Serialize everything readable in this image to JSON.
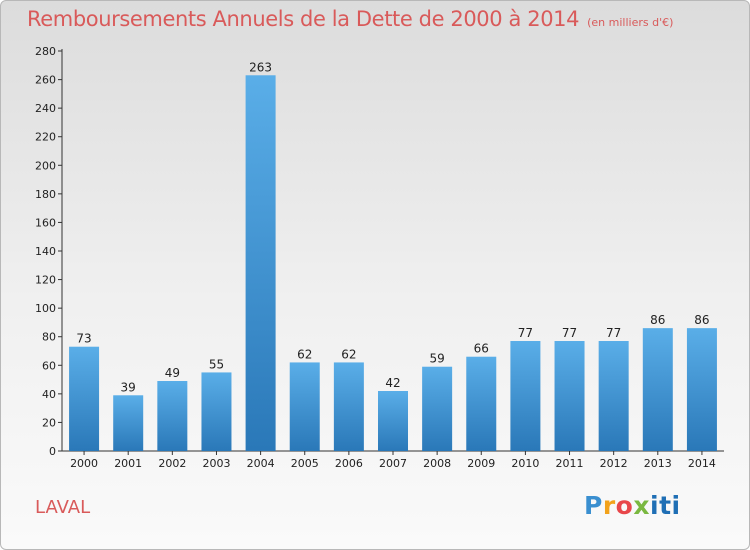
{
  "title": "Remboursements Annuels de la Dette de 2000 à 2014",
  "subtitle": "(en milliers d'€)",
  "commune": "LAVAL",
  "logo_text": "Proxiti",
  "colors": {
    "bar_top": "#5aaee8",
    "bar_bottom": "#2a78b8",
    "title": "#d95a5a"
  },
  "chart_data": {
    "type": "bar",
    "title": "Remboursements Annuels de la Dette de 2000 à 2014",
    "subtitle": "(en milliers d'€)",
    "xlabel": "",
    "ylabel": "",
    "categories": [
      "2000",
      "2001",
      "2002",
      "2003",
      "2004",
      "2005",
      "2006",
      "2007",
      "2008",
      "2009",
      "2010",
      "2011",
      "2012",
      "2013",
      "2014"
    ],
    "values": [
      73,
      39,
      49,
      55,
      263,
      62,
      62,
      42,
      59,
      66,
      77,
      77,
      77,
      86,
      86
    ],
    "ylim": [
      0,
      280
    ],
    "yticks": [
      0,
      20,
      40,
      60,
      80,
      100,
      120,
      140,
      160,
      180,
      200,
      220,
      240,
      260,
      280
    ],
    "grid": false,
    "legend": "none"
  }
}
